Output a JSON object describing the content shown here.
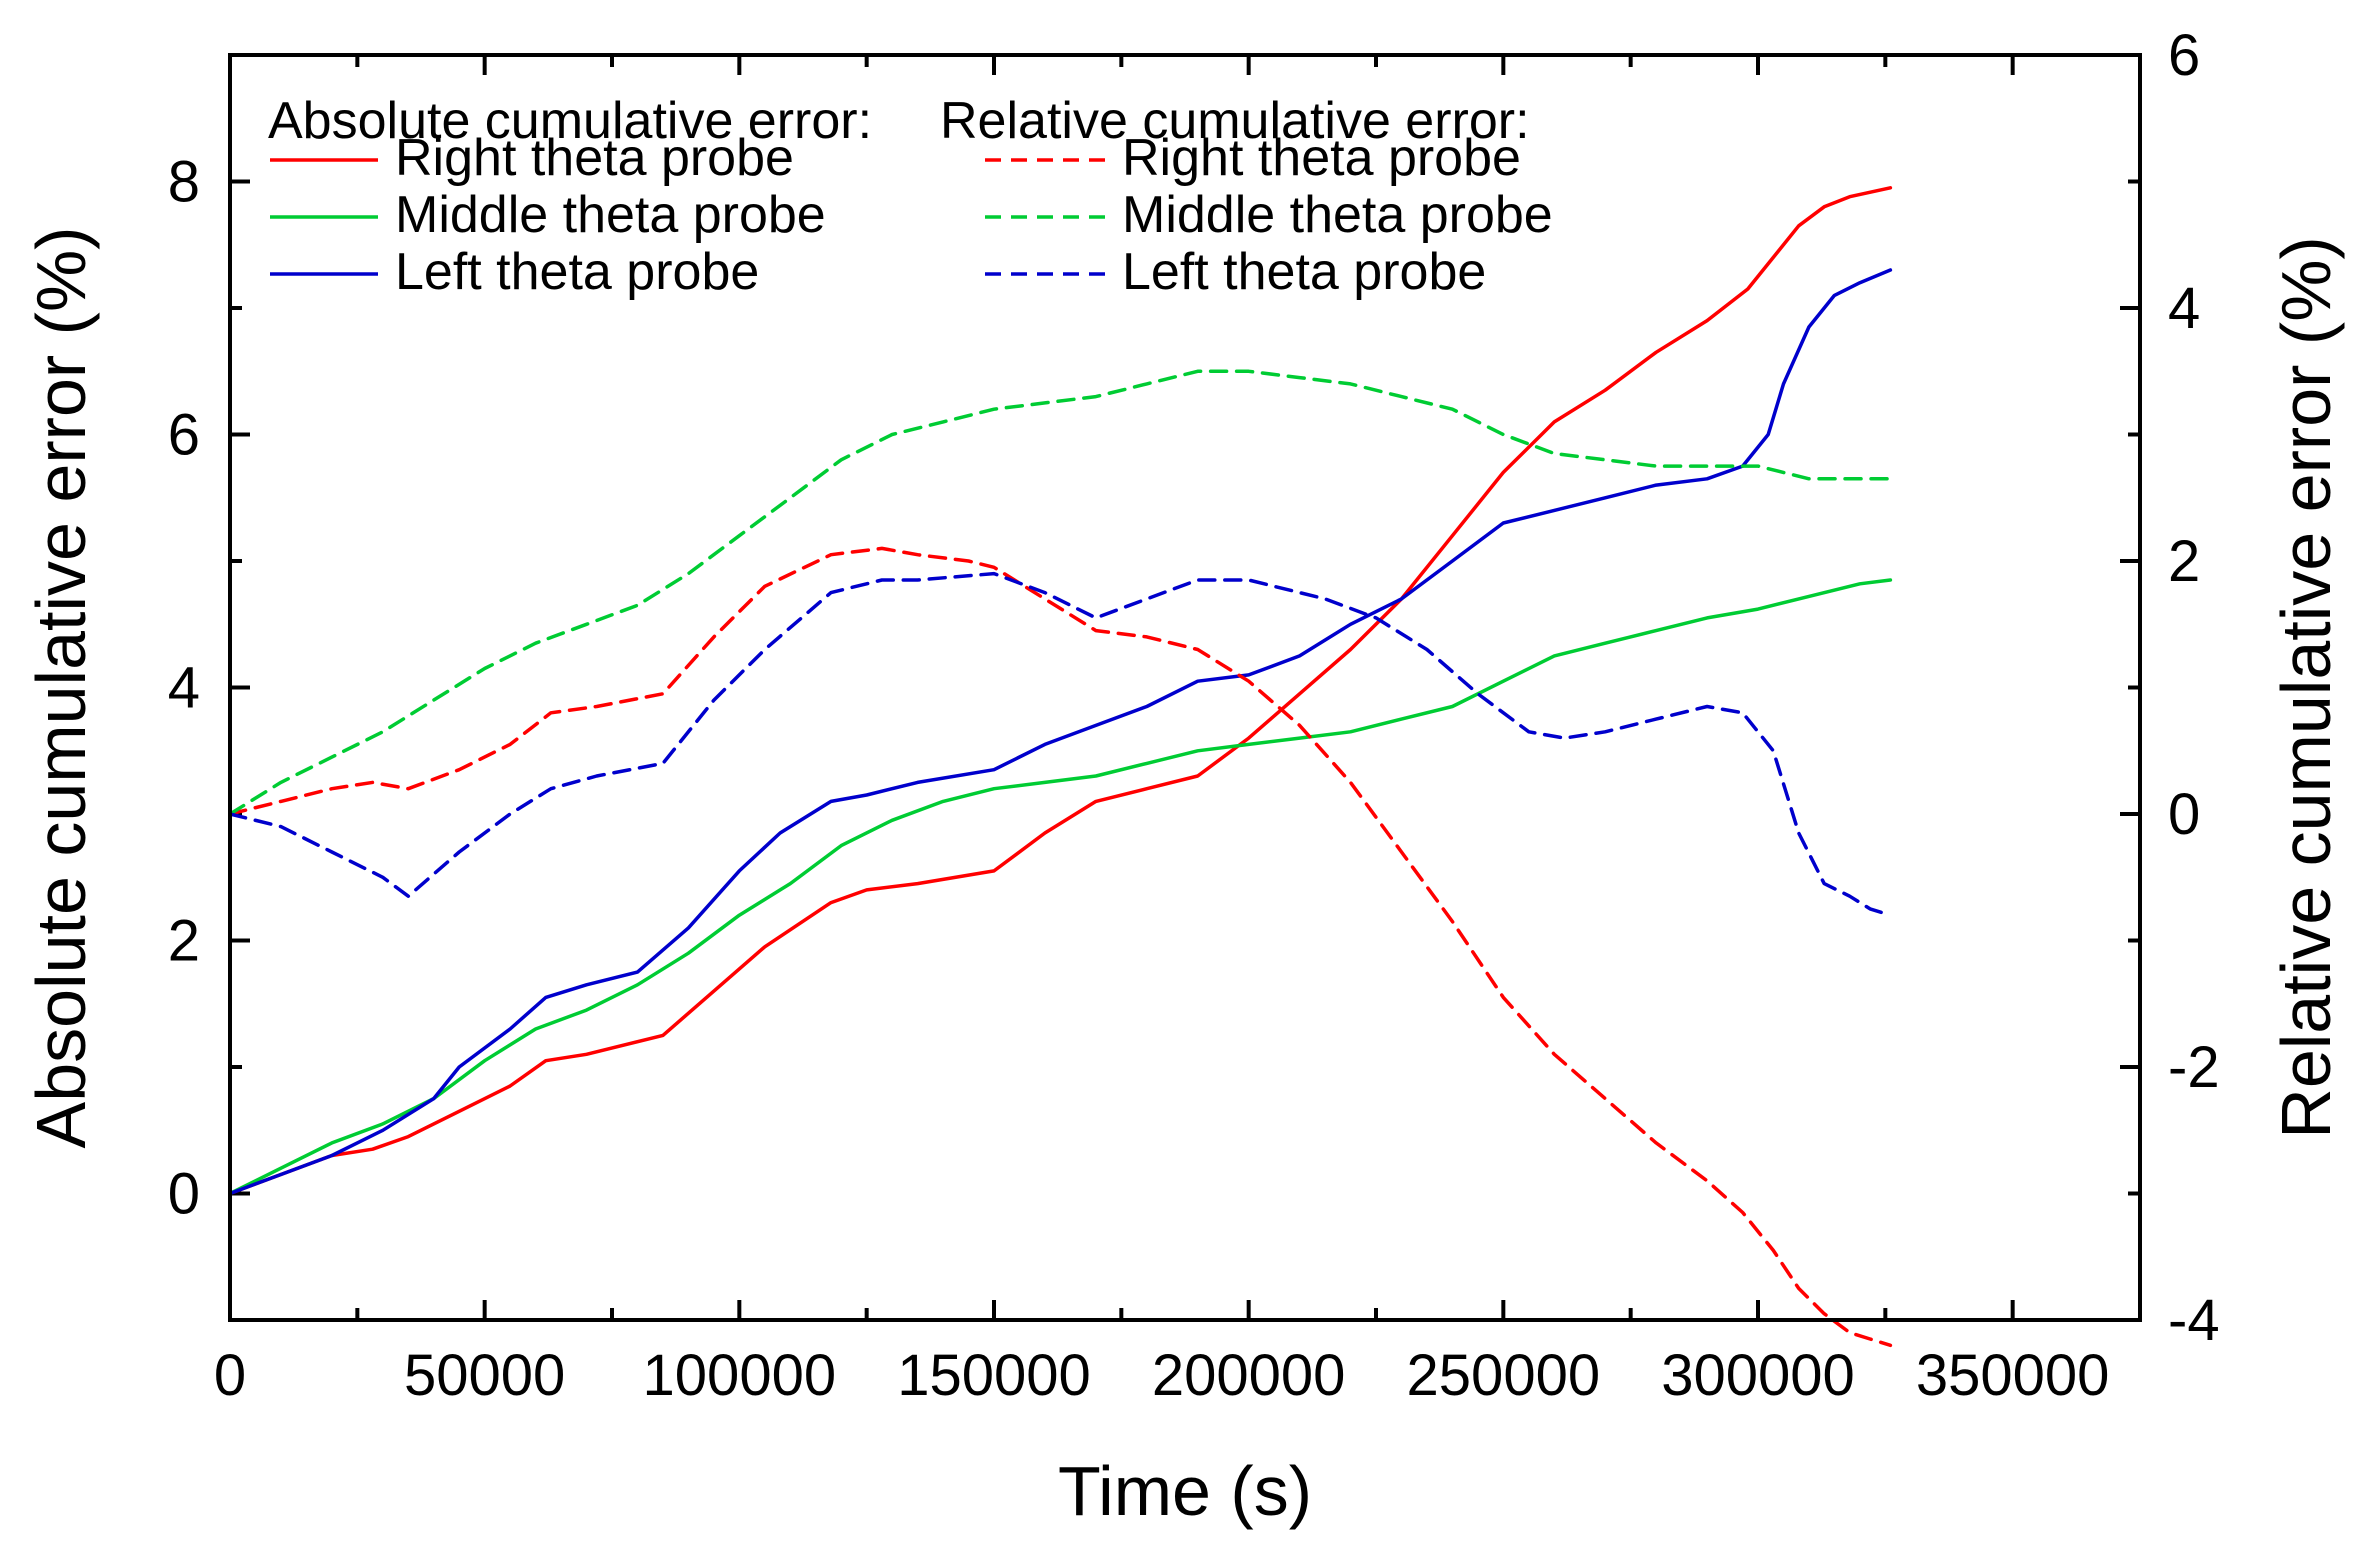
{
  "chart_data": {
    "type": "line",
    "title": "",
    "xlabel": "Time (s)",
    "ylabel_left": "Absolute cumulative error (%)",
    "ylabel_right": "Relative cumulative error (%)",
    "xlim": [
      0,
      375000
    ],
    "ylim_left": [
      -1,
      9
    ],
    "ylim_right": [
      -4,
      6
    ],
    "xticks": [
      0,
      50000,
      100000,
      150000,
      200000,
      250000,
      300000,
      350000
    ],
    "xtick_labels": [
      "0",
      "50000",
      "100000",
      "150000",
      "200000",
      "250000",
      "300000",
      "350000"
    ],
    "yticks_left": [
      0,
      2,
      4,
      6,
      8
    ],
    "ytick_labels_left": [
      "0",
      "2",
      "4",
      "6",
      "8"
    ],
    "yticks_right": [
      -4,
      -2,
      0,
      2,
      4,
      6
    ],
    "ytick_labels_right": [
      "-4",
      "-2",
      "0",
      "2",
      "4",
      "6"
    ],
    "grid": false,
    "legend": {
      "placement": "top-left",
      "absolute_heading": "Absolute cumulative error:",
      "relative_heading": "Relative cumulative error:"
    },
    "series": [
      {
        "name": "Right theta probe",
        "group": "absolute",
        "axis": "left",
        "color": "#ff0000",
        "dashed": false,
        "x": [
          0,
          10000,
          20000,
          28000,
          35000,
          45000,
          55000,
          62000,
          70000,
          85000,
          95000,
          105000,
          118000,
          125000,
          135000,
          150000,
          160000,
          170000,
          180000,
          190000,
          200000,
          210000,
          220000,
          230000,
          240000,
          250000,
          260000,
          270000,
          280000,
          290000,
          298000,
          303000,
          308000,
          313000,
          318000,
          326000
        ],
        "y": [
          0,
          0.15,
          0.3,
          0.35,
          0.45,
          0.65,
          0.85,
          1.05,
          1.1,
          1.25,
          1.6,
          1.95,
          2.3,
          2.4,
          2.45,
          2.55,
          2.85,
          3.1,
          3.2,
          3.3,
          3.6,
          3.95,
          4.3,
          4.7,
          5.2,
          5.7,
          6.1,
          6.35,
          6.65,
          6.9,
          7.15,
          7.4,
          7.65,
          7.8,
          7.88,
          7.95
        ]
      },
      {
        "name": "Middle theta probe",
        "group": "absolute",
        "axis": "left",
        "color": "#00cc33",
        "dashed": false,
        "x": [
          0,
          10000,
          20000,
          30000,
          40000,
          50000,
          60000,
          70000,
          80000,
          90000,
          100000,
          110000,
          120000,
          130000,
          140000,
          150000,
          160000,
          170000,
          180000,
          190000,
          200000,
          210000,
          220000,
          230000,
          240000,
          250000,
          260000,
          270000,
          280000,
          290000,
          300000,
          310000,
          320000,
          326000
        ],
        "y": [
          0,
          0.2,
          0.4,
          0.55,
          0.75,
          1.05,
          1.3,
          1.45,
          1.65,
          1.9,
          2.2,
          2.45,
          2.75,
          2.95,
          3.1,
          3.2,
          3.25,
          3.3,
          3.4,
          3.5,
          3.55,
          3.6,
          3.65,
          3.75,
          3.85,
          4.05,
          4.25,
          4.35,
          4.45,
          4.55,
          4.62,
          4.72,
          4.82,
          4.85
        ]
      },
      {
        "name": "Left theta probe",
        "group": "absolute",
        "axis": "left",
        "color": "#0000cc",
        "dashed": false,
        "x": [
          0,
          10000,
          20000,
          30000,
          40000,
          45000,
          55000,
          62000,
          70000,
          80000,
          90000,
          100000,
          108000,
          118000,
          125000,
          135000,
          150000,
          160000,
          170000,
          180000,
          190000,
          200000,
          210000,
          220000,
          230000,
          240000,
          250000,
          260000,
          270000,
          280000,
          290000,
          297000,
          302000,
          305000,
          310000,
          315000,
          320000,
          326000
        ],
        "y": [
          0,
          0.15,
          0.3,
          0.5,
          0.75,
          1.0,
          1.3,
          1.55,
          1.65,
          1.75,
          2.1,
          2.55,
          2.85,
          3.1,
          3.15,
          3.25,
          3.35,
          3.55,
          3.7,
          3.85,
          4.05,
          4.1,
          4.25,
          4.5,
          4.7,
          5.0,
          5.3,
          5.4,
          5.5,
          5.6,
          5.65,
          5.75,
          6.0,
          6.4,
          6.85,
          7.1,
          7.2,
          7.3
        ]
      },
      {
        "name": "Right theta probe",
        "group": "relative",
        "axis": "right",
        "color": "#ff0000",
        "dashed": true,
        "x": [
          0,
          10000,
          20000,
          28000,
          35000,
          45000,
          55000,
          63000,
          72000,
          85000,
          95000,
          105000,
          118000,
          128000,
          135000,
          145000,
          150000,
          160000,
          170000,
          180000,
          190000,
          200000,
          210000,
          220000,
          230000,
          240000,
          250000,
          260000,
          270000,
          280000,
          290000,
          297000,
          303000,
          308000,
          313000,
          318000,
          322000,
          326000
        ],
        "y": [
          0,
          0.1,
          0.2,
          0.25,
          0.2,
          0.35,
          0.55,
          0.8,
          0.85,
          0.95,
          1.4,
          1.8,
          2.05,
          2.1,
          2.05,
          2.0,
          1.95,
          1.7,
          1.45,
          1.4,
          1.3,
          1.05,
          0.7,
          0.25,
          -0.3,
          -0.85,
          -1.45,
          -1.9,
          -2.25,
          -2.6,
          -2.9,
          -3.15,
          -3.45,
          -3.75,
          -3.95,
          -4.1,
          -4.15,
          -4.2
        ]
      },
      {
        "name": "Middle theta probe",
        "group": "relative",
        "axis": "right",
        "color": "#00cc33",
        "dashed": true,
        "x": [
          0,
          10000,
          20000,
          30000,
          40000,
          50000,
          60000,
          70000,
          80000,
          90000,
          100000,
          110000,
          120000,
          130000,
          140000,
          150000,
          160000,
          170000,
          180000,
          190000,
          200000,
          210000,
          220000,
          230000,
          240000,
          250000,
          260000,
          270000,
          280000,
          290000,
          300000,
          310000,
          320000,
          326000
        ],
        "y": [
          0,
          0.25,
          0.45,
          0.65,
          0.9,
          1.15,
          1.35,
          1.5,
          1.65,
          1.9,
          2.2,
          2.5,
          2.8,
          3.0,
          3.1,
          3.2,
          3.25,
          3.3,
          3.4,
          3.5,
          3.5,
          3.45,
          3.4,
          3.3,
          3.2,
          3.0,
          2.85,
          2.8,
          2.75,
          2.75,
          2.75,
          2.65,
          2.65,
          2.65
        ]
      },
      {
        "name": "Left theta probe",
        "group": "relative",
        "axis": "right",
        "color": "#0000cc",
        "dashed": true,
        "x": [
          0,
          10000,
          20000,
          30000,
          35000,
          45000,
          55000,
          63000,
          72000,
          85000,
          95000,
          105000,
          118000,
          128000,
          135000,
          150000,
          160000,
          170000,
          180000,
          190000,
          200000,
          205000,
          215000,
          225000,
          235000,
          245000,
          255000,
          262000,
          270000,
          280000,
          290000,
          297000,
          303000,
          308000,
          313000,
          318000,
          322000,
          326000
        ],
        "y": [
          0,
          -0.1,
          -0.3,
          -0.5,
          -0.65,
          -0.3,
          0,
          0.2,
          0.3,
          0.4,
          0.9,
          1.3,
          1.75,
          1.85,
          1.85,
          1.9,
          1.75,
          1.55,
          1.7,
          1.85,
          1.85,
          1.8,
          1.7,
          1.55,
          1.3,
          0.95,
          0.65,
          0.6,
          0.65,
          0.75,
          0.85,
          0.8,
          0.5,
          -0.15,
          -0.55,
          -0.65,
          -0.75,
          -0.8
        ]
      }
    ]
  }
}
